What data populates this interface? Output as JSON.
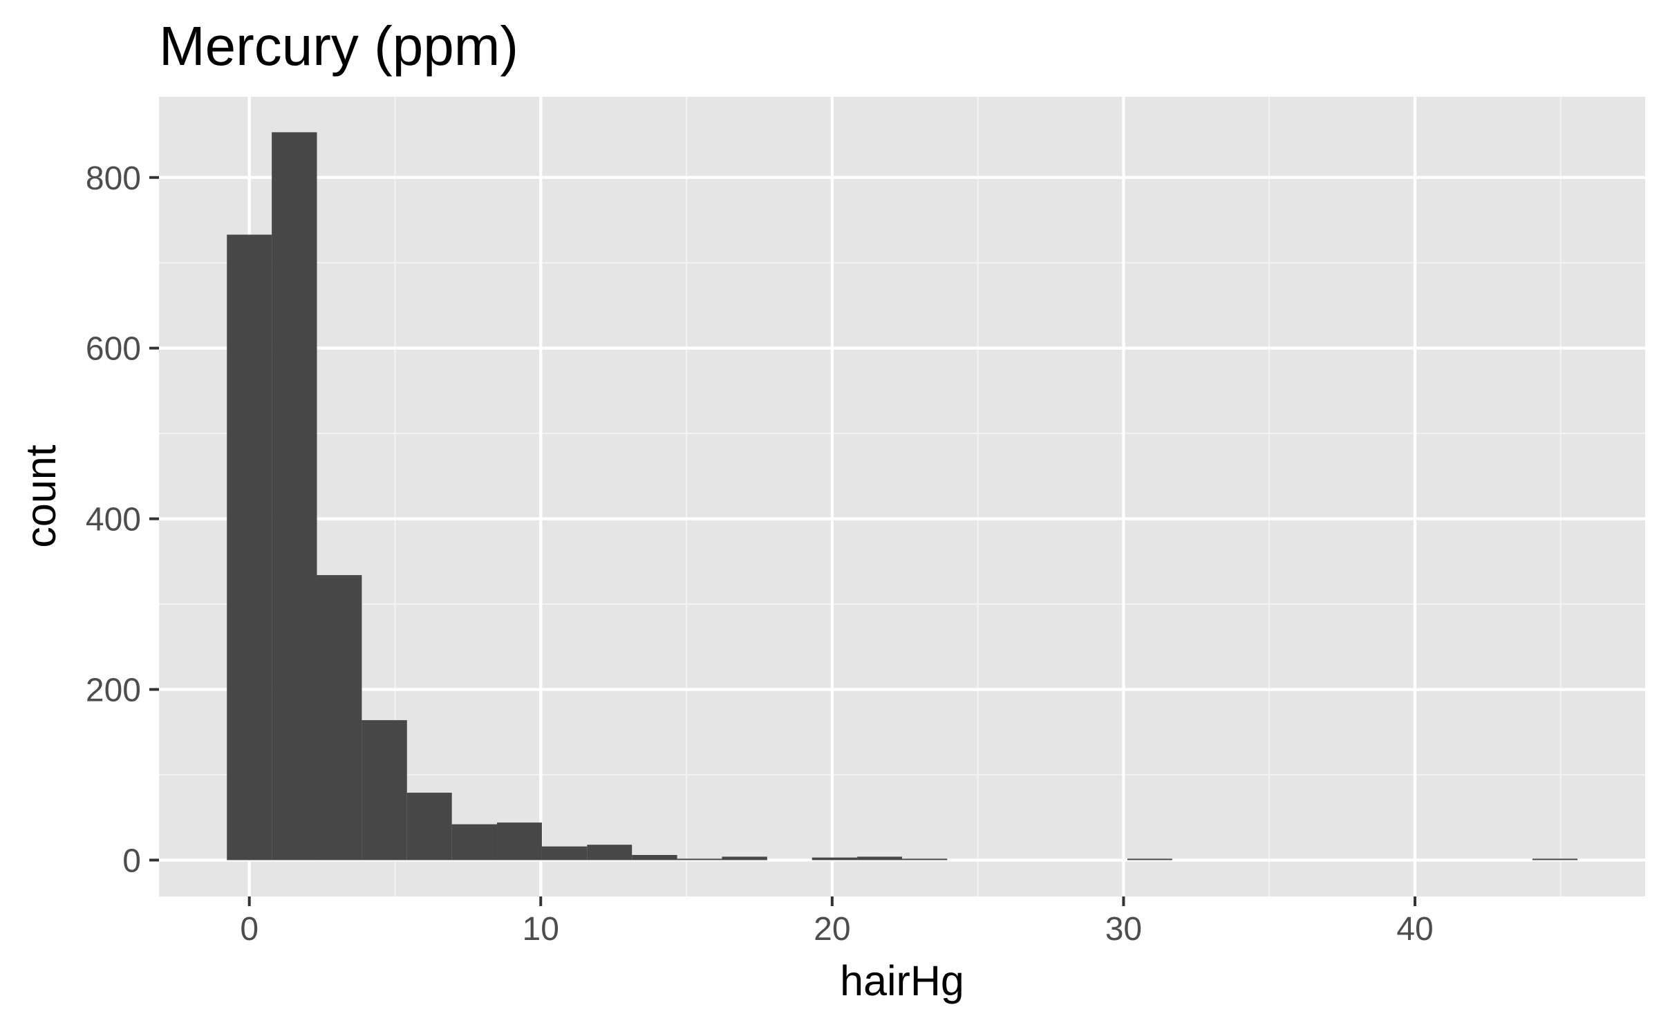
{
  "chart_data": {
    "type": "bar",
    "title": "Mercury (ppm)",
    "xlabel": "hairHg",
    "ylabel": "count",
    "xlim": [
      -3.1,
      47.9
    ],
    "ylim": [
      -42.6,
      894.6
    ],
    "x_ticks": [
      0,
      10,
      20,
      30,
      40
    ],
    "x_tick_labels": [
      "0",
      "10",
      "20",
      "30",
      "40"
    ],
    "x_minor_ticks": [
      5,
      15,
      25,
      35,
      45
    ],
    "y_ticks": [
      0,
      200,
      400,
      600,
      800
    ],
    "y_tick_labels": [
      "0",
      "200",
      "400",
      "600",
      "800"
    ],
    "y_minor_ticks": [
      100,
      300,
      500,
      700
    ],
    "bin_width": 1.545,
    "bins": [
      {
        "x_start": -0.77,
        "x_end": 0.77,
        "count": 733
      },
      {
        "x_start": 0.77,
        "x_end": 2.32,
        "count": 853
      },
      {
        "x_start": 2.32,
        "x_end": 3.86,
        "count": 334
      },
      {
        "x_start": 3.86,
        "x_end": 5.41,
        "count": 164
      },
      {
        "x_start": 5.41,
        "x_end": 6.95,
        "count": 79
      },
      {
        "x_start": 6.95,
        "x_end": 8.5,
        "count": 42
      },
      {
        "x_start": 8.5,
        "x_end": 10.04,
        "count": 44
      },
      {
        "x_start": 10.04,
        "x_end": 11.59,
        "count": 16
      },
      {
        "x_start": 11.59,
        "x_end": 13.13,
        "count": 18
      },
      {
        "x_start": 13.13,
        "x_end": 14.68,
        "count": 6
      },
      {
        "x_start": 14.68,
        "x_end": 16.22,
        "count": 1
      },
      {
        "x_start": 16.22,
        "x_end": 17.77,
        "count": 4
      },
      {
        "x_start": 17.77,
        "x_end": 19.31,
        "count": 0
      },
      {
        "x_start": 19.31,
        "x_end": 20.86,
        "count": 3
      },
      {
        "x_start": 20.86,
        "x_end": 22.4,
        "count": 4
      },
      {
        "x_start": 22.4,
        "x_end": 23.95,
        "count": 1
      },
      {
        "x_start": 23.95,
        "x_end": 25.49,
        "count": 0
      },
      {
        "x_start": 25.49,
        "x_end": 27.04,
        "count": 0
      },
      {
        "x_start": 27.04,
        "x_end": 28.58,
        "count": 0
      },
      {
        "x_start": 28.58,
        "x_end": 30.13,
        "count": 0
      },
      {
        "x_start": 30.13,
        "x_end": 31.67,
        "count": 1
      },
      {
        "x_start": 31.67,
        "x_end": 33.22,
        "count": 0
      },
      {
        "x_start": 33.22,
        "x_end": 34.76,
        "count": 0
      },
      {
        "x_start": 34.76,
        "x_end": 36.31,
        "count": 0
      },
      {
        "x_start": 36.31,
        "x_end": 37.85,
        "count": 0
      },
      {
        "x_start": 37.85,
        "x_end": 39.4,
        "count": 0
      },
      {
        "x_start": 39.4,
        "x_end": 40.94,
        "count": 0
      },
      {
        "x_start": 40.94,
        "x_end": 42.49,
        "count": 0
      },
      {
        "x_start": 42.49,
        "x_end": 44.03,
        "count": 0
      },
      {
        "x_start": 44.03,
        "x_end": 45.58,
        "count": 1
      }
    ],
    "grid": true,
    "colors": {
      "panel_background": "#e5e5e5",
      "grid_major": "#ffffff",
      "grid_minor": "#f2f2f2",
      "bar_fill": "#474747",
      "tick_color": "#333333",
      "tick_label_color": "#4d4d4d"
    }
  }
}
